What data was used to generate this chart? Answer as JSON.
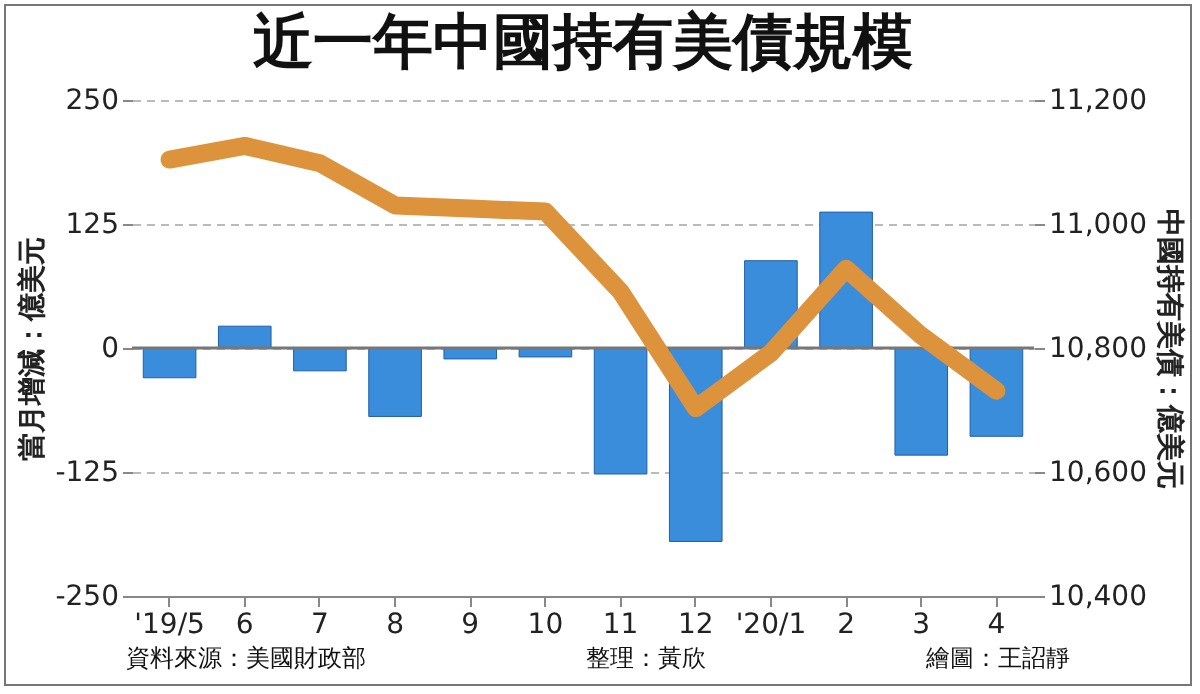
{
  "chart_data": {
    "type": "bar",
    "title": "近一年中國持有美債規模",
    "categories": [
      "'19/5",
      "6",
      "7",
      "8",
      "9",
      "10",
      "11",
      "12",
      "'20/1",
      "2",
      "3",
      "4"
    ],
    "series": [
      {
        "color": "#3a8ddb",
        "values": [
          -30,
          22,
          -23,
          -69,
          -11,
          -9,
          -127,
          -195,
          88,
          137,
          -108,
          -89
        ]
      },
      {
        "type": "line",
        "axis": "y2",
        "color": "#dc933c",
        "values": [
          11104,
          11126,
          11098,
          11030,
          11025,
          11020,
          10891,
          10703,
          10792,
          10928,
          10820,
          10731
        ]
      }
    ],
    "ylabel": "當月增減：億美元",
    "y2label": "中國持有美債：億美元",
    "ylim": [
      -250,
      250
    ],
    "yticks": [
      -250,
      -125,
      0,
      125,
      250
    ],
    "y2lim": [
      10400,
      11200
    ],
    "y2ticks": [
      {
        "value": 10400,
        "label": "10,400"
      },
      {
        "value": 10600,
        "label": "10,600"
      },
      {
        "value": 10800,
        "label": "10,800"
      },
      {
        "value": 11000,
        "label": "11,000"
      },
      {
        "value": 11200,
        "label": "11,200"
      }
    ],
    "ref_lines": [
      {
        "axis": "y",
        "value": 0
      }
    ],
    "grid": "y",
    "annotations": [
      "資料來源：美國財政部",
      "整理：黃欣",
      "繪圖：王詔靜"
    ]
  }
}
